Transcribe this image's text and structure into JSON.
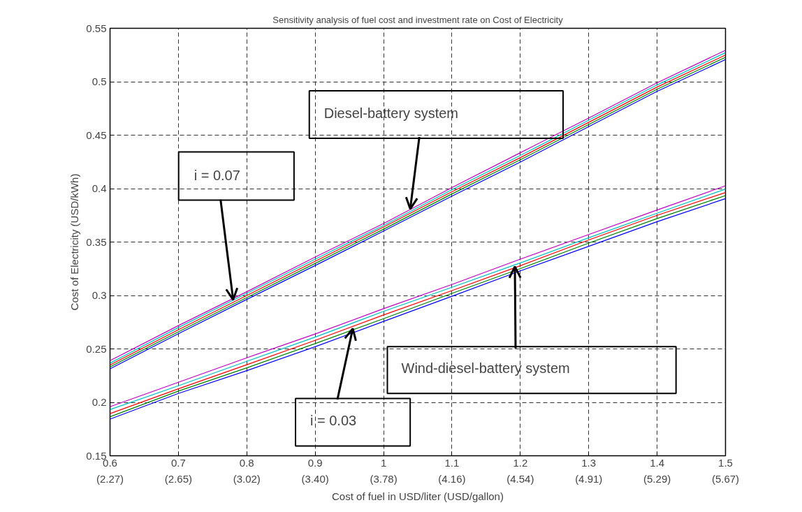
{
  "chart_data": {
    "type": "line",
    "title": "Sensitivity analysis of fuel cost and investment rate on Cost of Electricity",
    "xlabel": "Cost of fuel in USD/liter (USD/gallon)",
    "ylabel": "Cost of Electricity (USD/kWh)",
    "x": [
      0.6,
      0.7,
      0.8,
      0.9,
      1.0,
      1.1,
      1.2,
      1.3,
      1.4,
      1.5
    ],
    "series": [
      {
        "color": "#0000ff",
        "values": [
          0.2314,
          0.2642,
          0.2963,
          0.328,
          0.3603,
          0.393,
          0.4248,
          0.458,
          0.491,
          0.5207
        ]
      },
      {
        "color": "#008000",
        "values": [
          0.2332,
          0.266,
          0.298,
          0.33,
          0.362,
          0.395,
          0.427,
          0.46,
          0.493,
          0.5229
        ]
      },
      {
        "color": "#ff0000",
        "values": [
          0.235,
          0.268,
          0.3,
          0.332,
          0.364,
          0.397,
          0.429,
          0.462,
          0.495,
          0.525
        ]
      },
      {
        "color": "#00bfbf",
        "values": [
          0.2367,
          0.27,
          0.302,
          0.334,
          0.3655,
          0.399,
          0.431,
          0.464,
          0.497,
          0.5272
        ]
      },
      {
        "color": "#bf00bf",
        "values": [
          0.239,
          0.2718,
          0.3035,
          0.336,
          0.3673,
          0.401,
          0.4336,
          0.466,
          0.499,
          0.5294
        ]
      },
      {
        "color": "#0000ff",
        "values": [
          0.1843,
          0.2083,
          0.2297,
          0.252,
          0.2757,
          0.2993,
          0.323,
          0.346,
          0.369,
          0.3906
        ]
      },
      {
        "color": "#008000",
        "values": [
          0.1865,
          0.2105,
          0.2323,
          0.255,
          0.2783,
          0.302,
          0.3252,
          0.349,
          0.372,
          0.3935
        ]
      },
      {
        "color": "#ff0000",
        "values": [
          0.1895,
          0.2127,
          0.2352,
          0.258,
          0.2818,
          0.3046,
          0.3279,
          0.352,
          0.375,
          0.3963
        ]
      },
      {
        "color": "#00bfbf",
        "values": [
          0.1932,
          0.2155,
          0.2384,
          0.261,
          0.2851,
          0.3077,
          0.3305,
          0.354,
          0.377,
          0.3996
        ]
      },
      {
        "color": "#bf00bf",
        "values": [
          0.1959,
          0.2188,
          0.2417,
          0.264,
          0.2877,
          0.3103,
          0.334,
          0.357,
          0.38,
          0.4026
        ]
      }
    ],
    "xlim": [
      0.6,
      1.5
    ],
    "ylim": [
      0.15,
      0.55
    ],
    "xticks": [
      0.6,
      0.7,
      0.8,
      0.9,
      1,
      1.1,
      1.2,
      1.3,
      1.4,
      1.5
    ],
    "x2lim": [
      2.2691,
      5.6689
    ],
    "x2ticks": [
      {
        "value": 2.2691,
        "label": "(2.27)"
      },
      {
        "value": 2.6469,
        "label": "(2.65)"
      },
      {
        "value": 3.0246,
        "label": "(3.02)"
      },
      {
        "value": 3.4024,
        "label": "(3.40)"
      },
      {
        "value": 3.7801,
        "label": "(3.78)"
      },
      {
        "value": 4.1579,
        "label": "(4.16)"
      },
      {
        "value": 4.5357,
        "label": "(4.54)"
      },
      {
        "value": 4.9134,
        "label": "(4.91)"
      },
      {
        "value": 5.2912,
        "label": "(5.29)"
      },
      {
        "value": 5.6689,
        "label": "(5.67)"
      }
    ],
    "yticks": [
      0.15,
      0.2,
      0.25,
      0.3,
      0.35,
      0.4,
      0.45,
      0.5,
      0.55
    ],
    "grid": true,
    "line_style": "solid",
    "marker": "none",
    "annotations": [
      {
        "text": "Diesel-battery system",
        "x": 1.039,
        "y": 0.381
      },
      {
        "text": "i = 0.07",
        "x": 0.78,
        "y": 0.296
      },
      {
        "text": "Wind-diesel-battery system",
        "x": 1.192,
        "y": 0.327
      },
      {
        "text": "i = 0.03",
        "x": 0.955,
        "y": 0.269
      }
    ]
  }
}
